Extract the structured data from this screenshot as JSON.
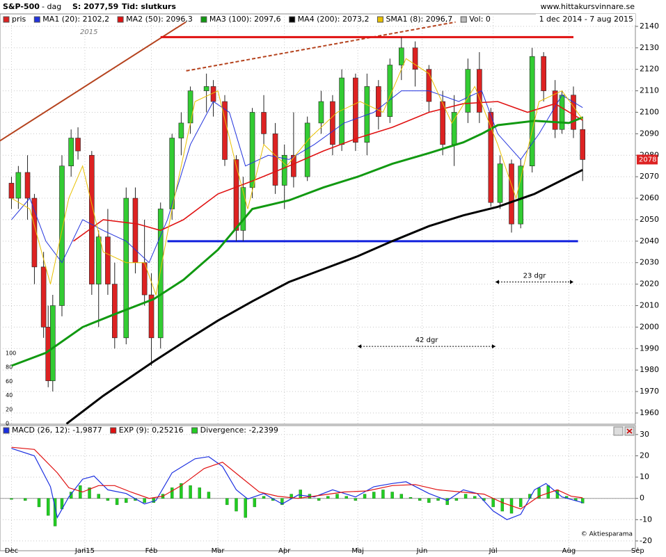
{
  "header": {
    "symbol": "S&P-500",
    "period": "- dag",
    "last": "S: 2077,59",
    "time": "Tid: slutkurs",
    "site": "www.hittakursvinnare.se",
    "range": "1 dec 2014 - 7 aug 2015",
    "copyright": "© Aktiesparama"
  },
  "chart_data": [
    {
      "type": "candlestick",
      "candle_name": "pris",
      "candle_color": "#dd2222",
      "volume_name": "Vol: 0",
      "volume_color": "#bbbbbb",
      "year_label": "2015",
      "xlim": [
        -5,
        272
      ],
      "ylim": [
        1954.8,
        2145.8
      ],
      "xticks": [
        {
          "value": 0,
          "label": "Dec"
        },
        {
          "value": 32,
          "label": "Jan15"
        },
        {
          "value": 61,
          "label": "Feb"
        },
        {
          "value": 90,
          "label": "Mar"
        },
        {
          "value": 119,
          "label": "Apr"
        },
        {
          "value": 151,
          "label": "Maj"
        },
        {
          "value": 179,
          "label": "Jun"
        },
        {
          "value": 210,
          "label": "Jul"
        },
        {
          "value": 243,
          "label": "Aug"
        },
        {
          "value": 273,
          "label": "Sep"
        }
      ],
      "yticks": [
        1960,
        1970,
        1980,
        1990,
        2000,
        2010,
        2020,
        2030,
        2040,
        2050,
        2060,
        2070,
        2080,
        2090,
        2100,
        2110,
        2120,
        2130,
        2140
      ],
      "last_tick": 2078,
      "vol_ylim": [
        0,
        100
      ],
      "vol_yticks": [
        0,
        20,
        40,
        60,
        80,
        100
      ],
      "grid": true,
      "candles": {
        "x": [
          0,
          3,
          7,
          10,
          14,
          16,
          18,
          22,
          26,
          29,
          35,
          38,
          42,
          45,
          50,
          54,
          58,
          61,
          65,
          70,
          74,
          78,
          85,
          88,
          93,
          98,
          101,
          105,
          110,
          115,
          119,
          123,
          129,
          135,
          140,
          144,
          150,
          155,
          160,
          165,
          170,
          176,
          182,
          188,
          193,
          199,
          204,
          209,
          213,
          218,
          222,
          227,
          232,
          237,
          240,
          245,
          249
        ],
        "open": [
          2067,
          2060,
          2072,
          2060,
          2028,
          2000,
          1975,
          2010,
          2075,
          2088,
          2080,
          2020,
          2042,
          2020,
          1995,
          2060,
          2030,
          2015,
          1995,
          2055,
          2088,
          2095,
          2110,
          2112,
          2105,
          2078,
          2045,
          2065,
          2100,
          2090,
          2066,
          2080,
          2070,
          2095,
          2105,
          2085,
          2116,
          2086,
          2112,
          2098,
          2122,
          2130,
          2120,
          2105,
          2085,
          2100,
          2120,
          2100,
          2058,
          2076,
          2048,
          2075,
          2126,
          2110,
          2092,
          2108,
          2092
        ],
        "high": [
          2070,
          2075,
          2080,
          2062,
          2035,
          2010,
          2015,
          2080,
          2092,
          2093,
          2082,
          2045,
          2055,
          2030,
          2065,
          2065,
          2050,
          2025,
          2058,
          2090,
          2100,
          2112,
          2118,
          2115,
          2108,
          2080,
          2070,
          2102,
          2108,
          2095,
          2085,
          2100,
          2098,
          2110,
          2108,
          2120,
          2118,
          2118,
          2115,
          2125,
          2135,
          2133,
          2122,
          2110,
          2108,
          2125,
          2128,
          2102,
          2080,
          2078,
          2078,
          2130,
          2128,
          2115,
          2110,
          2112,
          2098
        ],
        "low": [
          2055,
          2055,
          2050,
          2020,
          1995,
          1972,
          1970,
          2005,
          2070,
          2078,
          2015,
          2000,
          2015,
          1990,
          1992,
          2025,
          2010,
          1982,
          1990,
          2050,
          2080,
          2090,
          2100,
          2098,
          2075,
          2040,
          2040,
          2060,
          2085,
          2062,
          2055,
          2065,
          2068,
          2090,
          2080,
          2082,
          2082,
          2080,
          2092,
          2095,
          2115,
          2112,
          2100,
          2080,
          2075,
          2095,
          2095,
          2056,
          2055,
          2044,
          2046,
          2072,
          2105,
          2088,
          2090,
          2088,
          2068
        ],
        "close": [
          2060,
          2072,
          2060,
          2028,
          2000,
          1975,
          2010,
          2075,
          2088,
          2082,
          2020,
          2042,
          2020,
          1995,
          2060,
          2030,
          2015,
          1995,
          2055,
          2088,
          2095,
          2110,
          2112,
          2105,
          2078,
          2045,
          2065,
          2100,
          2090,
          2066,
          2080,
          2070,
          2095,
          2105,
          2085,
          2116,
          2086,
          2112,
          2098,
          2122,
          2130,
          2120,
          2105,
          2085,
          2100,
          2120,
          2100,
          2058,
          2076,
          2048,
          2075,
          2126,
          2110,
          2092,
          2108,
          2092,
          2078
        ]
      },
      "series": [
        {
          "name": "MA1 (20): 2102,2",
          "color": "#2233dd",
          "width": 1,
          "x": [
            0,
            8,
            15,
            22,
            31,
            40,
            50,
            60,
            68,
            78,
            88,
            95,
            102,
            112,
            121,
            132,
            145,
            158,
            170,
            182,
            195,
            205,
            212,
            222,
            230,
            240,
            249
          ],
          "values": [
            2050,
            2060,
            2040,
            2030,
            2050,
            2045,
            2040,
            2030,
            2050,
            2085,
            2105,
            2100,
            2075,
            2080,
            2078,
            2085,
            2095,
            2100,
            2110,
            2110,
            2105,
            2110,
            2090,
            2078,
            2090,
            2108,
            2102.2
          ]
        },
        {
          "name": "MA2 (50): 2096,3",
          "color": "#e01010",
          "width": 1.6,
          "x": [
            27,
            40,
            55,
            65,
            75,
            90,
            105,
            121,
            136,
            151,
            166,
            182,
            197,
            212,
            225,
            237,
            249
          ],
          "values": [
            2040,
            2050,
            2048,
            2045,
            2050,
            2062,
            2068,
            2075,
            2082,
            2088,
            2093,
            2100,
            2104,
            2105,
            2100,
            2104,
            2096.3
          ]
        },
        {
          "name": "MA3 (100): 2097,6",
          "color": "#119911",
          "width": 3,
          "x": [
            0,
            15,
            31,
            45,
            62,
            75,
            90,
            105,
            121,
            136,
            151,
            166,
            182,
            197,
            205,
            212,
            228,
            243,
            249
          ],
          "values": [
            1982,
            1988,
            2000,
            2006,
            2013,
            2022,
            2036,
            2055,
            2059,
            2065,
            2070,
            2076,
            2081,
            2086,
            2090,
            2094,
            2096,
            2095,
            2097.6
          ]
        },
        {
          "name": "MA4 (200): 2073,2",
          "color": "#000000",
          "width": 3,
          "x": [
            24,
            40,
            62,
            75,
            90,
            105,
            121,
            136,
            151,
            166,
            182,
            197,
            212,
            228,
            243,
            249
          ],
          "values": [
            1955,
            1968,
            1984,
            1993,
            2003,
            2012,
            2021,
            2027,
            2033,
            2040,
            2047,
            2052,
            2056,
            2062,
            2070,
            2073.2
          ]
        },
        {
          "name": "SMA1 (8): 2096,7",
          "color": "#e8c000",
          "width": 1,
          "x": [
            0,
            8,
            17,
            25,
            31,
            40,
            50,
            58,
            63,
            70,
            80,
            90,
            98,
            103,
            110,
            120,
            130,
            142,
            152,
            162,
            172,
            182,
            192,
            202,
            212,
            220,
            230,
            240,
            249
          ],
          "values": [
            2060,
            2055,
            2020,
            2060,
            2075,
            2035,
            2030,
            2030,
            2015,
            2055,
            2105,
            2110,
            2075,
            2055,
            2085,
            2075,
            2088,
            2100,
            2105,
            2100,
            2125,
            2118,
            2095,
            2112,
            2085,
            2060,
            2105,
            2110,
            2096.7
          ]
        }
      ],
      "levels": [
        {
          "value": 2135,
          "x": [
            65,
            245
          ],
          "color": "#e01010"
        },
        {
          "value": 2040,
          "x": [
            68,
            247
          ],
          "color": "#1020dd"
        }
      ],
      "trend_lines": [
        {
          "x": [
            -5.2,
            76
          ],
          "y": [
            2086.6,
            2142
          ],
          "color": "#b5431e",
          "dashed": false
        },
        {
          "x": [
            76.2,
            193.6
          ],
          "y": [
            2119.3,
            2142
          ],
          "color": "#b5431e",
          "dashed": true
        }
      ],
      "annotations": [
        {
          "text": "42 dgr",
          "x": [
            151,
            211
          ],
          "y": 1991
        },
        {
          "text": "23 dgr",
          "x": [
            211,
            245
          ],
          "y": 2021
        }
      ]
    },
    {
      "type": "macd",
      "xlim": [
        -5,
        272
      ],
      "ylim": [
        -24.6,
        34.2
      ],
      "yticks": [
        -20,
        -10,
        0,
        10,
        20,
        30
      ],
      "grid": true,
      "series": [
        {
          "name": "MACD (26, 12): -1,9877",
          "color": "#1a2ee0",
          "type": "line",
          "x": [
            0,
            10,
            17,
            20,
            25,
            31,
            36,
            42,
            50,
            58,
            63,
            70,
            80,
            86,
            92,
            98,
            103,
            110,
            118,
            125,
            132,
            140,
            150,
            158,
            166,
            172,
            182,
            190,
            197,
            203,
            210,
            216,
            222,
            228,
            233,
            240,
            249
          ],
          "values": [
            23.5,
            20,
            5.5,
            -9,
            0.7,
            9,
            10.5,
            4,
            2.3,
            -2.6,
            -1,
            12,
            18.6,
            19.6,
            15,
            4,
            -0.3,
            2.3,
            -2.6,
            1.6,
            0.7,
            4,
            0.7,
            5.5,
            7,
            7.8,
            2.3,
            -1,
            4,
            2.3,
            -5.9,
            -10,
            -7.5,
            4,
            7,
            0.7,
            -2
          ]
        },
        {
          "name": "EXP (9): 0,25216",
          "color": "#e01010",
          "type": "line",
          "x": [
            0,
            10,
            20,
            25,
            31,
            38,
            45,
            52,
            60,
            66,
            74,
            84,
            92,
            100,
            108,
            116,
            125,
            135,
            145,
            155,
            166,
            176,
            186,
            196,
            206,
            214,
            222,
            230,
            238,
            244,
            249
          ],
          "values": [
            24,
            23,
            12,
            5,
            3,
            6,
            6,
            3,
            0,
            1,
            6,
            14,
            17,
            10,
            3,
            1,
            0,
            1.5,
            3,
            3.5,
            6,
            6.5,
            4,
            3,
            2,
            -2,
            -5,
            1,
            4,
            1,
            0.25
          ]
        },
        {
          "name": "Divergence: -2,2399",
          "color": "#22cc22",
          "type": "bar",
          "x": [
            0,
            6,
            12,
            16,
            19,
            22,
            26,
            30,
            34,
            38,
            42,
            46,
            50,
            54,
            58,
            62,
            66,
            70,
            74,
            78,
            82,
            86,
            90,
            94,
            98,
            102,
            106,
            110,
            114,
            118,
            122,
            126,
            130,
            134,
            138,
            142,
            146,
            150,
            154,
            158,
            162,
            166,
            170,
            174,
            178,
            182,
            186,
            190,
            194,
            198,
            202,
            206,
            210,
            214,
            218,
            222,
            226,
            230,
            234,
            238,
            242,
            246,
            249
          ],
          "values": [
            -0.5,
            -1,
            -4,
            -8,
            -13,
            -5,
            3,
            6,
            5,
            2,
            -1,
            -3,
            -2,
            -1,
            -2,
            -2,
            2,
            5,
            7,
            6,
            5,
            3,
            0,
            -3,
            -6,
            -9,
            -4,
            1,
            -1,
            -3,
            2,
            4,
            2,
            -1,
            1,
            2,
            1,
            -1,
            2,
            3,
            4,
            3,
            2,
            0.5,
            -1,
            -2,
            -1,
            -3,
            -1,
            2,
            1,
            -1,
            -4,
            -6,
            -7,
            -4,
            2,
            5,
            6,
            4,
            1,
            -1,
            -2.24
          ]
        }
      ]
    }
  ]
}
